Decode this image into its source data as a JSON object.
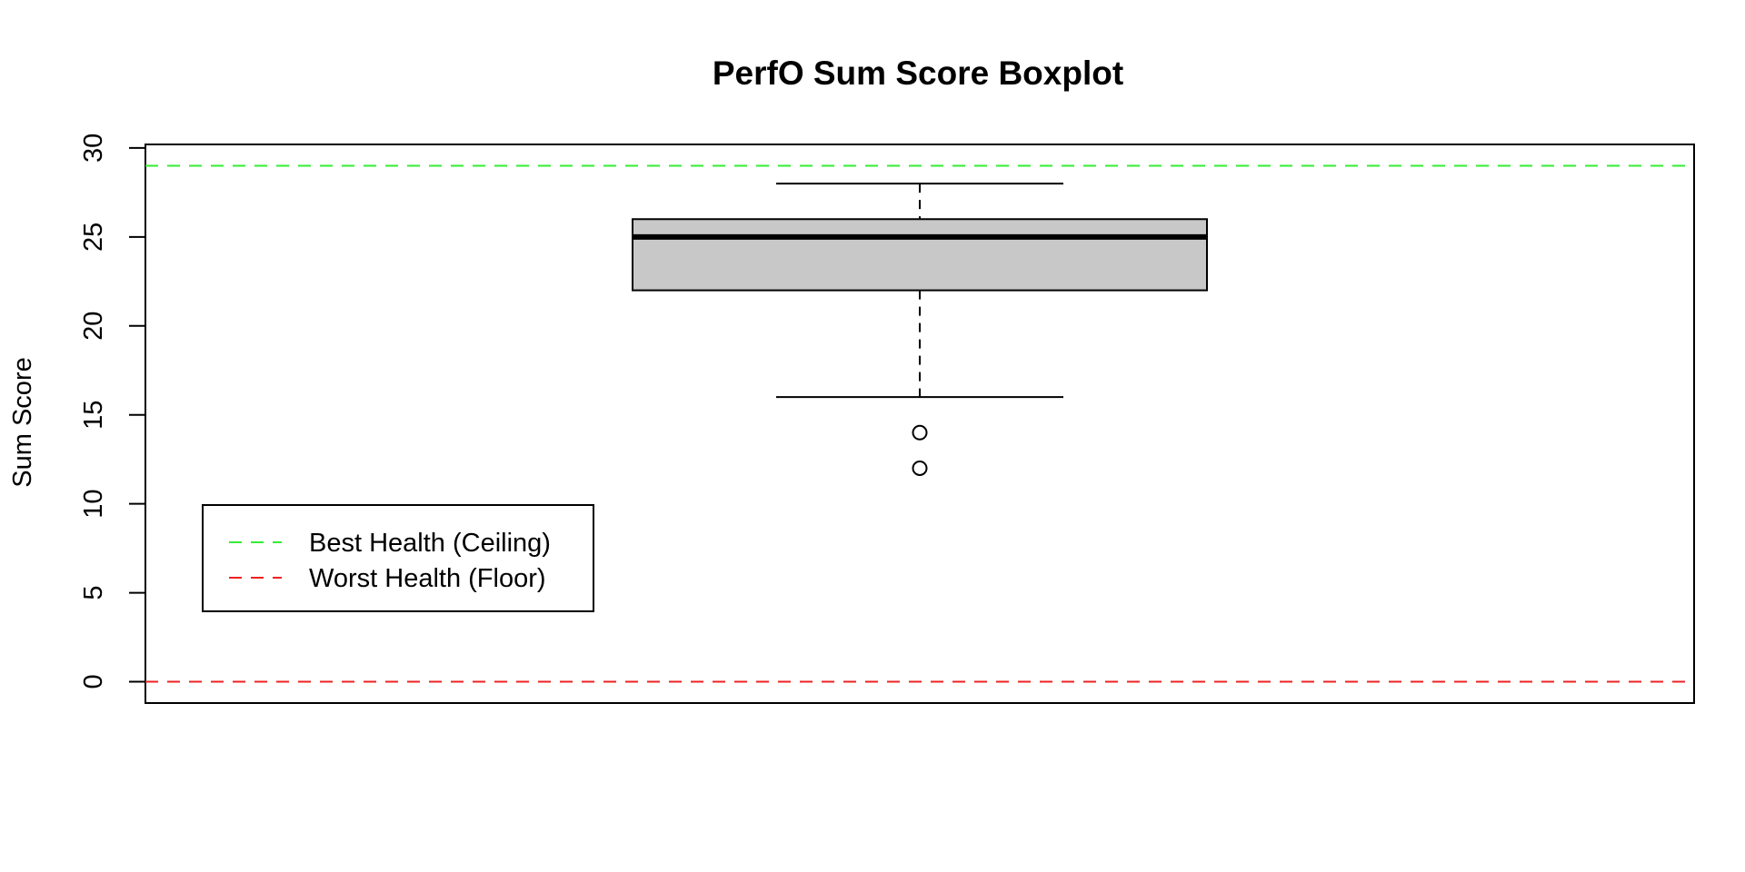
{
  "chart_data": {
    "type": "boxplot",
    "title": "PerfO Sum Score Boxplot",
    "xlabel": "",
    "ylabel": "Sum Score",
    "ylim": [
      -1.2,
      30.2
    ],
    "yticks": [
      0,
      5,
      10,
      15,
      20,
      25,
      30
    ],
    "grid": false,
    "box": {
      "lower_whisker": 16,
      "q1": 22,
      "median": 25,
      "q3": 26,
      "upper_whisker": 28,
      "outliers": [
        14,
        12
      ]
    },
    "reference_lines": [
      {
        "name": "Best Health (Ceiling)",
        "y": 29,
        "color": "#33ee33",
        "style": "dashed"
      },
      {
        "name": "Worst Health (Floor)",
        "y": 0,
        "color": "#ee2222",
        "style": "dashed"
      }
    ],
    "legend": {
      "position": "bottom-left",
      "entries": [
        "Best Health (Ceiling)",
        "Worst Health (Floor)"
      ]
    },
    "colors": {
      "box_fill": "#c8c8c8",
      "stroke": "#000000"
    }
  }
}
